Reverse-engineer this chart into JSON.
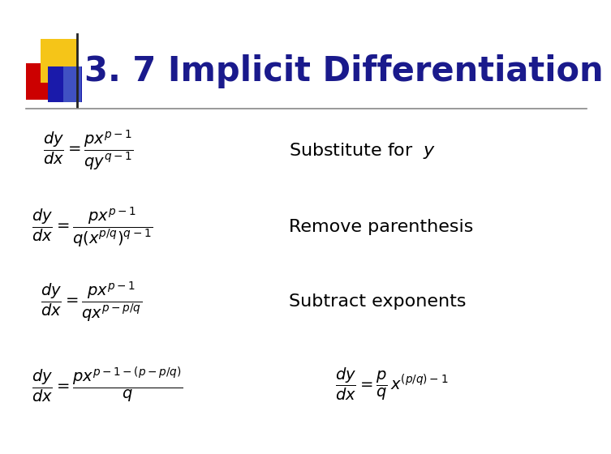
{
  "title": "3. 7 Implicit Differentiation",
  "title_color": "#1a1a8c",
  "title_fontsize": 30,
  "background_color": "#ffffff",
  "accent_yellow": "#f5c518",
  "accent_red": "#cc0000",
  "accent_blue_dark": "#1a1aaa",
  "accent_blue_light": "#6688dd",
  "eq1_left": "$\\dfrac{dy}{dx} = \\dfrac{px^{p-1}}{qy^{q-1}}$",
  "eq1_right": "Substitute for  $y$",
  "eq2_left": "$\\dfrac{dy}{dx} = \\dfrac{px^{p-1}}{q(x^{p/q})^{q-1}}$",
  "eq2_right": "Remove parenthesis",
  "eq3_left": "$\\dfrac{dy}{dx} = \\dfrac{px^{p-1}}{qx^{p-p/q}}$",
  "eq3_right": "Subtract exponents",
  "eq4_left": "$\\dfrac{dy}{dx} = \\dfrac{px^{p-1-(p-p/q)}}{q}$",
  "eq4_right": "$\\dfrac{dy}{dx} = \\dfrac{p}{q}\\, x^{(p/q)-1}$",
  "eq_fontsize": 14,
  "label_fontsize": 16,
  "eq_color": "#000000",
  "label_color": "#000000"
}
